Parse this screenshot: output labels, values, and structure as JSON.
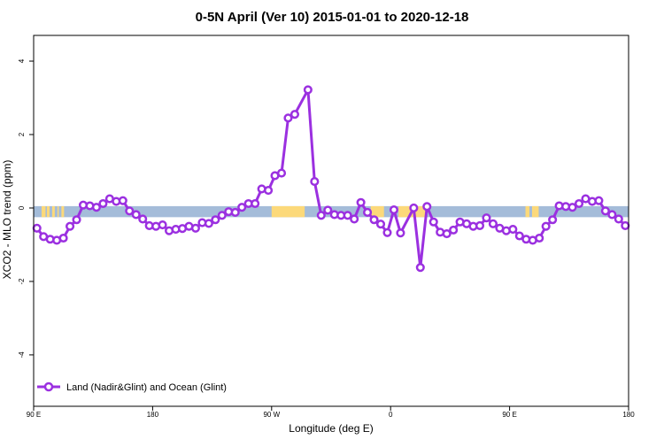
{
  "chart_data": {
    "type": "line",
    "title": "0-5N April (Ver 10)   2015-01-01 to 2020-12-18",
    "xlabel": "Longitude (deg E)",
    "ylabel": "XCO2 - MLO trend (ppm)",
    "xlim": [
      90,
      540
    ],
    "ylim": [
      -5.4,
      4.7
    ],
    "x_ticks": [
      {
        "value": 90,
        "label": "90 E"
      },
      {
        "value": 180,
        "label": "180"
      },
      {
        "value": 270,
        "label": "90 W"
      },
      {
        "value": 360,
        "label": "0"
      },
      {
        "value": 450,
        "label": "90 E"
      },
      {
        "value": 540,
        "label": "180"
      }
    ],
    "y_ticks": [
      {
        "value": 4,
        "label": "4"
      },
      {
        "value": 2,
        "label": "2"
      },
      {
        "value": 0,
        "label": "0"
      },
      {
        "value": -2,
        "label": "-2"
      },
      {
        "value": -4,
        "label": "-4"
      }
    ],
    "grid": false,
    "legend_position": "bottom-left",
    "series": [
      {
        "name": "Land (Nadir&Glint) and Ocean (Glint)",
        "color": "#9b30e0",
        "x": [
          92.5,
          97.5,
          102.5,
          107.5,
          112.5,
          117.5,
          122.5,
          127.5,
          132.5,
          137.5,
          142.5,
          147.5,
          152.5,
          157.5,
          162.5,
          167.5,
          172.5,
          177.5,
          182.5,
          187.5,
          192.5,
          197.5,
          202.5,
          207.5,
          212.5,
          217.5,
          222.5,
          227.5,
          232.5,
          237.5,
          242.5,
          247.5,
          252.5,
          257.5,
          262.5,
          267.5,
          272.5,
          277.5,
          282.5,
          287.5,
          297.5,
          302.5,
          307.5,
          312.5,
          317.5,
          322.5,
          327.5,
          332.5,
          337.5,
          342.5,
          347.5,
          352.5,
          357.5,
          362.5,
          367.5,
          377.5,
          382.5,
          387.5,
          392.5,
          397.5,
          402.5,
          407.5,
          412.5,
          417.5,
          422.5,
          427.5,
          432.5,
          437.5,
          442.5,
          447.5,
          452.5,
          457.5,
          462.5,
          467.5,
          472.5,
          477.5,
          482.5,
          487.5,
          492.5,
          497.5,
          502.5,
          507.5,
          512.5,
          517.5,
          522.5,
          527.5,
          532.5,
          537.5
        ],
        "y": [
          -0.55,
          -0.78,
          -0.85,
          -0.88,
          -0.82,
          -0.5,
          -0.32,
          0.08,
          0.06,
          0.02,
          0.12,
          0.25,
          0.18,
          0.2,
          -0.08,
          -0.18,
          -0.3,
          -0.48,
          -0.5,
          -0.46,
          -0.62,
          -0.58,
          -0.56,
          -0.5,
          -0.55,
          -0.4,
          -0.42,
          -0.32,
          -0.2,
          -0.1,
          -0.12,
          0.02,
          0.12,
          0.12,
          0.52,
          0.48,
          0.88,
          0.95,
          2.45,
          2.55,
          3.22,
          0.72,
          -0.2,
          -0.06,
          -0.18,
          -0.2,
          -0.2,
          -0.3,
          0.15,
          -0.12,
          -0.32,
          -0.44,
          -0.67,
          -0.05,
          -0.68,
          0,
          -1.62,
          0.04,
          -0.38,
          -0.66,
          -0.7,
          -0.6,
          -0.38,
          -0.43,
          -0.5,
          -0.48,
          -0.27,
          -0.43,
          -0.55,
          -0.62,
          -0.58,
          -0.76,
          -0.85,
          -0.88,
          -0.82,
          -0.5,
          -0.32,
          0.06,
          0.04,
          0.02,
          0.12,
          0.25,
          0.18,
          0.2,
          -0.08,
          -0.18,
          -0.3,
          -0.48
        ]
      }
    ],
    "surface_band": {
      "y_range": [
        -0.25,
        0.05
      ],
      "ocean_color": "#a4bcd9",
      "land_color": "#fcd97a",
      "land_ranges": [
        [
          96,
          99
        ],
        [
          100,
          102
        ],
        [
          104,
          106
        ],
        [
          108,
          109
        ],
        [
          111,
          113
        ],
        [
          270,
          295
        ],
        [
          345,
          355
        ],
        [
          366,
          387
        ],
        [
          462,
          465
        ],
        [
          467,
          469
        ],
        [
          469,
          472
        ]
      ]
    }
  }
}
